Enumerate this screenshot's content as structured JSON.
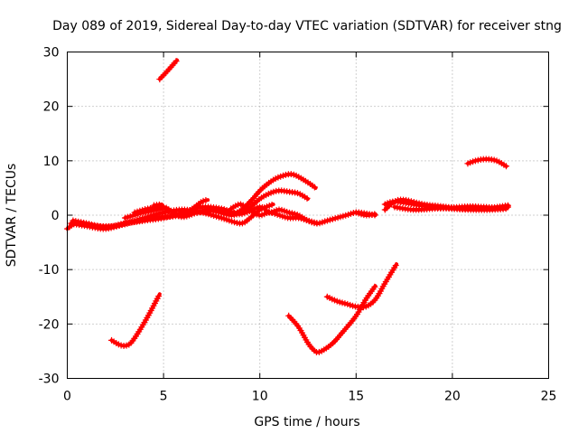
{
  "chart_data": {
    "type": "scatter",
    "title": "Day 089 of 2019, Sidereal Day-to-day VTEC variation (SDTVAR) for receiver stng",
    "xlabel": "GPS time / hours",
    "ylabel": "SDTVAR / TECUs",
    "xlim": [
      0,
      25
    ],
    "ylim": [
      -30,
      30
    ],
    "xticks": [
      0,
      5,
      10,
      15,
      20,
      25
    ],
    "yticks": [
      -30,
      -20,
      -10,
      0,
      10,
      20,
      30
    ],
    "grid": true,
    "color": "#ff0000",
    "series": [
      {
        "name": "s1",
        "points": [
          [
            0,
            -2.5
          ],
          [
            0.5,
            -1.5
          ],
          [
            1.5,
            -2
          ],
          [
            2.5,
            -2
          ],
          [
            3.5,
            -1.2
          ],
          [
            4.5,
            -0.5
          ],
          [
            5.5,
            -0.2
          ],
          [
            6.5,
            0.3
          ],
          [
            7.5,
            0.8
          ],
          [
            8.5,
            0
          ],
          [
            9,
            0.5
          ],
          [
            9.5,
            1.5
          ],
          [
            10,
            3
          ],
          [
            10.5,
            4
          ],
          [
            11,
            4.5
          ],
          [
            11.5,
            4.3
          ],
          [
            12,
            4
          ],
          [
            12.5,
            3
          ]
        ]
      },
      {
        "name": "s2",
        "points": [
          [
            0.3,
            -1
          ],
          [
            1,
            -1.5
          ],
          [
            2,
            -2.2
          ],
          [
            3,
            -1.5
          ],
          [
            4,
            -1
          ],
          [
            5,
            -0.5
          ],
          [
            6,
            0.5
          ],
          [
            7,
            1.5
          ],
          [
            8,
            1.2
          ],
          [
            8.8,
            0.5
          ],
          [
            9.5,
            2.5
          ],
          [
            10,
            4.5
          ],
          [
            10.5,
            6
          ],
          [
            11,
            7
          ],
          [
            11.7,
            7.5
          ],
          [
            12.5,
            6
          ],
          [
            12.9,
            5
          ]
        ]
      },
      {
        "name": "s3",
        "points": [
          [
            0.2,
            -1.5
          ],
          [
            1,
            -2
          ],
          [
            2,
            -2.5
          ],
          [
            3,
            -1.5
          ],
          [
            4,
            -0.5
          ],
          [
            5,
            0.5
          ],
          [
            6,
            1
          ],
          [
            7,
            0.5
          ],
          [
            8,
            -0.5
          ],
          [
            9,
            -1.5
          ],
          [
            9.5,
            -0.5
          ],
          [
            10,
            1
          ],
          [
            10.7,
            2
          ]
        ]
      },
      {
        "name": "s4",
        "points": [
          [
            3,
            -0.5
          ],
          [
            4,
            0.5
          ],
          [
            5,
            1.2
          ],
          [
            5.3,
            0.8
          ],
          [
            6,
            -0.3
          ],
          [
            7,
            0.8
          ],
          [
            8,
            1
          ],
          [
            9,
            0.2
          ],
          [
            10,
            1.5
          ],
          [
            10.5,
            0.5
          ],
          [
            11,
            1
          ],
          [
            11.5,
            0.5
          ],
          [
            12,
            0
          ],
          [
            12.5,
            -1
          ],
          [
            13,
            -1.5
          ],
          [
            13.5,
            -1
          ],
          [
            14,
            -0.5
          ],
          [
            14.5,
            0
          ],
          [
            15,
            0.5
          ],
          [
            15.5,
            0.3
          ],
          [
            16,
            0
          ]
        ]
      },
      {
        "name": "s5",
        "points": [
          [
            3.5,
            0.5
          ],
          [
            4.2,
            1.2
          ],
          [
            5,
            1.5
          ],
          [
            5.5,
            0.5
          ],
          [
            6,
            0
          ],
          [
            6.5,
            1.2
          ],
          [
            7,
            2.5
          ],
          [
            7.3,
            2.8
          ]
        ]
      },
      {
        "name": "s6",
        "points": [
          [
            4.5,
            1.8
          ],
          [
            4.9,
            2
          ]
        ]
      },
      {
        "name": "s7",
        "points": [
          [
            8.5,
            1.2
          ],
          [
            9,
            2
          ],
          [
            9.5,
            0.8
          ],
          [
            10,
            0
          ],
          [
            10.5,
            0.5
          ],
          [
            11,
            0
          ],
          [
            11.5,
            -0.5
          ],
          [
            12,
            -0.5
          ],
          [
            12.5,
            -1
          ],
          [
            13,
            -1.5
          ]
        ]
      },
      {
        "name": "s8",
        "points": [
          [
            16.5,
            2
          ],
          [
            17,
            2.5
          ],
          [
            18,
            2
          ],
          [
            19,
            1.5
          ],
          [
            20,
            1.2
          ],
          [
            21,
            1
          ],
          [
            22,
            1
          ],
          [
            22.8,
            1.2
          ]
        ]
      },
      {
        "name": "s9",
        "points": [
          [
            16.5,
            1
          ],
          [
            17,
            2.5
          ],
          [
            17.5,
            2.8
          ],
          [
            18.5,
            2
          ],
          [
            19.5,
            1.6
          ],
          [
            20.5,
            1.2
          ],
          [
            21.5,
            1.5
          ],
          [
            22.5,
            1.3
          ],
          [
            22.9,
            1.5
          ]
        ]
      },
      {
        "name": "s10",
        "points": [
          [
            17,
            1.5
          ],
          [
            18,
            1
          ],
          [
            19,
            1.2
          ],
          [
            20,
            1.4
          ],
          [
            21,
            1.6
          ],
          [
            22,
            1.4
          ],
          [
            22.9,
            1.8
          ]
        ]
      },
      {
        "name": "s11",
        "points": [
          [
            15,
            0.5
          ],
          [
            15.5,
            0
          ],
          [
            16,
            0.2
          ]
        ]
      },
      {
        "name": "s12",
        "points": [
          [
            4.8,
            25
          ],
          [
            5.2,
            26.5
          ],
          [
            5.7,
            28.5
          ]
        ]
      },
      {
        "name": "s13",
        "points": [
          [
            20.8,
            9.5
          ],
          [
            21.3,
            10.1
          ],
          [
            21.8,
            10.3
          ],
          [
            22.3,
            10
          ],
          [
            22.8,
            9
          ]
        ]
      },
      {
        "name": "s14",
        "points": [
          [
            2.3,
            -23
          ],
          [
            2.7,
            -23.8
          ],
          [
            3,
            -24
          ],
          [
            3.3,
            -23.5
          ],
          [
            3.7,
            -21.5
          ],
          [
            4.2,
            -18.5
          ],
          [
            4.8,
            -14.5
          ]
        ]
      },
      {
        "name": "s15",
        "points": [
          [
            11.5,
            -18.5
          ],
          [
            12,
            -20.5
          ],
          [
            12.5,
            -23.5
          ],
          [
            12.8,
            -24.8
          ],
          [
            13,
            -25.2
          ],
          [
            13.3,
            -24.8
          ],
          [
            13.8,
            -23.5
          ],
          [
            14.3,
            -21.5
          ],
          [
            15,
            -18.5
          ],
          [
            15.5,
            -15.5
          ],
          [
            16,
            -13
          ]
        ]
      },
      {
        "name": "s16",
        "points": [
          [
            13.5,
            -15
          ],
          [
            14,
            -15.8
          ],
          [
            14.5,
            -16.3
          ],
          [
            15,
            -16.8
          ],
          [
            15.5,
            -16.8
          ],
          [
            16,
            -15.5
          ],
          [
            16.5,
            -12.5
          ],
          [
            17.1,
            -9
          ]
        ]
      }
    ]
  }
}
